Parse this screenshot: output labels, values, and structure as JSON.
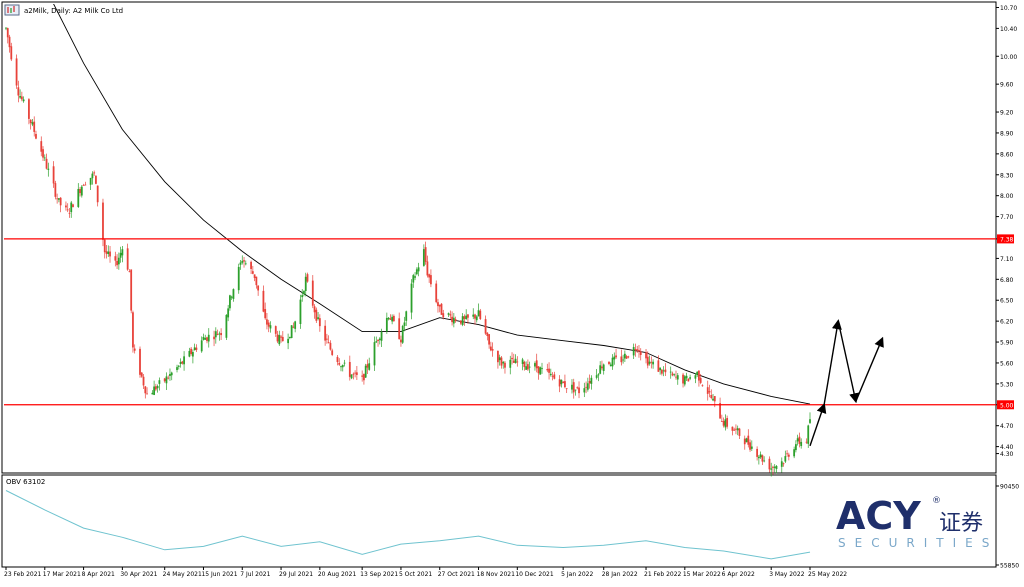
{
  "chart_data": [
    {
      "type": "candlestick",
      "title": "a2Milk, Daily:  A2 Milk Co Ltd",
      "ylim": [
        4.05,
        10.75
      ],
      "y_ticks": [
        "10.70",
        "10.40",
        "10.00",
        "9.60",
        "9.20",
        "8.90",
        "8.60",
        "8.30",
        "8.00",
        "7.70",
        "7.38",
        "7.10",
        "6.80",
        "6.50",
        "6.20",
        "5.90",
        "5.60",
        "5.30",
        "5.00",
        "4.70",
        "4.40",
        "4.30"
      ],
      "x_ticks": [
        "23 Feb 2021",
        "17 Mar 2021",
        "8 Apr 2021",
        "30 Apr 2021",
        "24 May 2021",
        "15 Jun 2021",
        "7 Jul 2021",
        "29 Jul 2021",
        "20 Aug 2021",
        "13 Sep 2021",
        "5 Oct 2021",
        "27 Oct 2021",
        "18 Nov 2021",
        "10 Dec 2021",
        "5 Jan 2022",
        "28 Jan 2022",
        "21 Feb 2022",
        "15 Mar 2022",
        "6 Apr 2022",
        "3 May 2022",
        "25 May 2022"
      ],
      "levels": [
        {
          "value": 7.38,
          "label": "7.38",
          "color": "#ff0000"
        },
        {
          "value": 5.0,
          "label": "5.00",
          "color": "#ff0000"
        }
      ],
      "projection": [
        {
          "x": "25 May 2022",
          "y": 4.41
        },
        {
          "x": "2 Jun 2022",
          "y": 5.0
        },
        {
          "x": "10 Jun 2022",
          "y": 6.2
        },
        {
          "x": "20 Jun 2022",
          "y": 5.05
        },
        {
          "x": "5 Jul 2022",
          "y": 5.95
        }
      ],
      "moving_average": {
        "color": "#000000",
        "points": [
          {
            "x": "23 Feb 2021",
            "y": 13.0
          },
          {
            "x": "17 Mar 2021",
            "y": 11.0
          },
          {
            "x": "8 Apr 2021",
            "y": 9.9
          },
          {
            "x": "30 Apr 2021",
            "y": 8.95
          },
          {
            "x": "24 May 2021",
            "y": 8.2
          },
          {
            "x": "15 Jun 2021",
            "y": 7.65
          },
          {
            "x": "7 Jul 2021",
            "y": 7.2
          },
          {
            "x": "29 Jul 2021",
            "y": 6.8
          },
          {
            "x": "20 Aug 2021",
            "y": 6.45
          },
          {
            "x": "13 Sep 2021",
            "y": 6.05
          },
          {
            "x": "5 Oct 2021",
            "y": 6.05
          },
          {
            "x": "27 Oct 2021",
            "y": 6.25
          },
          {
            "x": "18 Nov 2021",
            "y": 6.15
          },
          {
            "x": "10 Dec 2021",
            "y": 6.0
          },
          {
            "x": "5 Jan 2022",
            "y": 5.92
          },
          {
            "x": "28 Jan 2022",
            "y": 5.85
          },
          {
            "x": "21 Feb 2022",
            "y": 5.75
          },
          {
            "x": "15 Mar 2022",
            "y": 5.5
          },
          {
            "x": "6 Apr 2022",
            "y": 5.3
          },
          {
            "x": "3 May 2022",
            "y": 5.12
          },
          {
            "x": "25 May 2022",
            "y": 5.01
          }
        ]
      },
      "candle_colors": {
        "up": "#2ca02c",
        "down": "#e8423a"
      }
    },
    {
      "type": "line",
      "title": "OBV 63102",
      "ylim": [
        55850,
        90450
      ],
      "y_ticks": [
        "90450",
        "55850"
      ],
      "series": [
        {
          "color": "#6fc3cf",
          "points": [
            {
              "x": "23 Feb 2021",
              "y": 88500
            },
            {
              "x": "17 Mar 2021",
              "y": 80000
            },
            {
              "x": "8 Apr 2021",
              "y": 72000
            },
            {
              "x": "30 Apr 2021",
              "y": 68000
            },
            {
              "x": "24 May 2021",
              "y": 62500
            },
            {
              "x": "15 Jun 2021",
              "y": 64000
            },
            {
              "x": "7 Jul 2021",
              "y": 68500
            },
            {
              "x": "29 Jul 2021",
              "y": 64000
            },
            {
              "x": "20 Aug 2021",
              "y": 66000
            },
            {
              "x": "13 Sep 2021",
              "y": 60500
            },
            {
              "x": "5 Oct 2021",
              "y": 65000
            },
            {
              "x": "27 Oct 2021",
              "y": 66500
            },
            {
              "x": "18 Nov 2021",
              "y": 68500
            },
            {
              "x": "10 Dec 2021",
              "y": 64500
            },
            {
              "x": "5 Jan 2022",
              "y": 63500
            },
            {
              "x": "28 Jan 2022",
              "y": 64500
            },
            {
              "x": "21 Feb 2022",
              "y": 66500
            },
            {
              "x": "15 Mar 2022",
              "y": 63500
            },
            {
              "x": "6 Apr 2022",
              "y": 62000
            },
            {
              "x": "3 May 2022",
              "y": 58500
            },
            {
              "x": "25 May 2022",
              "y": 61500
            }
          ]
        }
      ]
    }
  ],
  "window": {
    "icon": "chart-window-icon"
  },
  "logo": {
    "brand": "ACY",
    "chinese": "证券",
    "sub": "SECURITIES",
    "mark": "®"
  }
}
